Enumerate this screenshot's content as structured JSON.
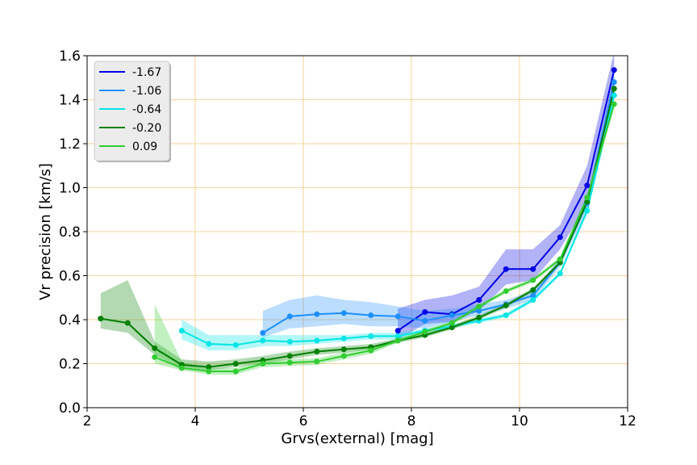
{
  "chart_data": {
    "type": "line",
    "xlabel": "Grvs(external) [mag]",
    "ylabel": "Vr precision [km/s]",
    "xlim": [
      2,
      12
    ],
    "ylim": [
      0.0,
      1.6
    ],
    "xticks": [
      2,
      4,
      6,
      8,
      10,
      12
    ],
    "xtick_labels": [
      "2",
      "4",
      "6",
      "8",
      "10",
      "12"
    ],
    "yticks": [
      0.0,
      0.2,
      0.4,
      0.6,
      0.8,
      1.0,
      1.2,
      1.4,
      1.6
    ],
    "ytick_labels": [
      "0.0",
      "0.2",
      "0.4",
      "0.6",
      "0.8",
      "1.0",
      "1.2",
      "1.4",
      "1.6"
    ],
    "grid": true,
    "grid_color": "#f5c77e",
    "legend_position": "top-left",
    "series": [
      {
        "name": "-1.67",
        "color": "#0000e6",
        "x": [
          7.75,
          8.25,
          8.75,
          9.25,
          9.75,
          10.25,
          10.75,
          11.25,
          11.75
        ],
        "y": [
          0.35,
          0.435,
          0.425,
          0.49,
          0.63,
          0.63,
          0.775,
          1.01,
          1.535
        ],
        "lower": [
          0.31,
          0.38,
          0.39,
          0.44,
          0.56,
          0.58,
          0.72,
          0.93,
          1.44
        ],
        "upper": [
          0.45,
          0.49,
          0.51,
          0.55,
          0.72,
          0.72,
          0.83,
          1.1,
          1.62
        ]
      },
      {
        "name": "-1.06",
        "color": "#1e8fff",
        "x": [
          5.25,
          5.75,
          6.25,
          6.75,
          7.25,
          7.75,
          8.25,
          8.75,
          9.25,
          9.75,
          10.25,
          10.75,
          11.25,
          11.75
        ],
        "y": [
          0.34,
          0.415,
          0.425,
          0.43,
          0.42,
          0.415,
          0.395,
          0.42,
          0.44,
          0.47,
          0.51,
          0.66,
          0.93,
          1.48
        ],
        "lower": [
          0.32,
          0.36,
          0.37,
          0.38,
          0.37,
          0.37,
          0.36,
          0.39,
          0.42,
          0.45,
          0.49,
          0.64,
          0.9,
          1.43
        ],
        "upper": [
          0.44,
          0.49,
          0.51,
          0.49,
          0.48,
          0.46,
          0.44,
          0.45,
          0.47,
          0.49,
          0.53,
          0.68,
          0.96,
          1.52
        ]
      },
      {
        "name": "-0.64",
        "color": "#00e5e5",
        "x": [
          3.75,
          4.25,
          4.75,
          5.25,
          5.75,
          6.25,
          6.75,
          7.25,
          7.75,
          8.25,
          8.75,
          9.25,
          9.75,
          10.25,
          10.75,
          11.25,
          11.75
        ],
        "y": [
          0.35,
          0.29,
          0.285,
          0.305,
          0.3,
          0.305,
          0.315,
          0.325,
          0.325,
          0.35,
          0.37,
          0.395,
          0.42,
          0.49,
          0.61,
          0.895,
          1.42
        ],
        "lower": [
          0.31,
          0.26,
          0.26,
          0.28,
          0.28,
          0.29,
          0.3,
          0.31,
          0.31,
          0.34,
          0.36,
          0.385,
          0.41,
          0.48,
          0.6,
          0.88,
          1.4
        ],
        "upper": [
          0.4,
          0.33,
          0.33,
          0.33,
          0.33,
          0.33,
          0.33,
          0.34,
          0.34,
          0.36,
          0.38,
          0.405,
          0.43,
          0.5,
          0.62,
          0.91,
          1.44
        ]
      },
      {
        "name": "-0.20",
        "color": "#008000",
        "x": [
          2.25,
          2.75,
          3.25,
          3.75,
          4.25,
          4.75,
          5.25,
          5.75,
          6.25,
          6.75,
          7.25,
          7.75,
          8.25,
          8.75,
          9.25,
          9.75,
          10.25,
          10.75,
          11.25,
          11.75
        ],
        "y": [
          0.405,
          0.385,
          0.27,
          0.195,
          0.185,
          0.2,
          0.215,
          0.235,
          0.255,
          0.265,
          0.275,
          0.305,
          0.33,
          0.365,
          0.41,
          0.465,
          0.535,
          0.66,
          0.935,
          1.45
        ],
        "lower": [
          0.36,
          0.34,
          0.24,
          0.18,
          0.17,
          0.185,
          0.2,
          0.22,
          0.24,
          0.25,
          0.265,
          0.295,
          0.32,
          0.355,
          0.4,
          0.455,
          0.525,
          0.65,
          0.92,
          1.43
        ],
        "upper": [
          0.52,
          0.58,
          0.3,
          0.22,
          0.21,
          0.22,
          0.235,
          0.255,
          0.27,
          0.28,
          0.29,
          0.315,
          0.34,
          0.375,
          0.42,
          0.475,
          0.545,
          0.67,
          0.95,
          1.47
        ]
      },
      {
        "name": "0.09",
        "color": "#32cd32",
        "x": [
          3.25,
          3.75,
          4.25,
          4.75,
          5.25,
          5.75,
          6.25,
          6.75,
          7.25,
          7.75,
          8.25,
          8.75,
          9.25,
          9.75,
          10.25,
          10.75,
          11.25,
          11.75
        ],
        "y": [
          0.23,
          0.18,
          0.165,
          0.165,
          0.2,
          0.205,
          0.21,
          0.235,
          0.26,
          0.305,
          0.345,
          0.385,
          0.46,
          0.53,
          0.58,
          0.675,
          0.955,
          1.38
        ],
        "lower": [
          0.2,
          0.17,
          0.15,
          0.15,
          0.185,
          0.19,
          0.195,
          0.22,
          0.245,
          0.295,
          0.335,
          0.375,
          0.45,
          0.52,
          0.57,
          0.665,
          0.94,
          1.36
        ],
        "upper": [
          0.47,
          0.21,
          0.18,
          0.18,
          0.215,
          0.22,
          0.225,
          0.25,
          0.275,
          0.315,
          0.355,
          0.395,
          0.47,
          0.54,
          0.59,
          0.685,
          0.97,
          1.4
        ]
      }
    ]
  }
}
